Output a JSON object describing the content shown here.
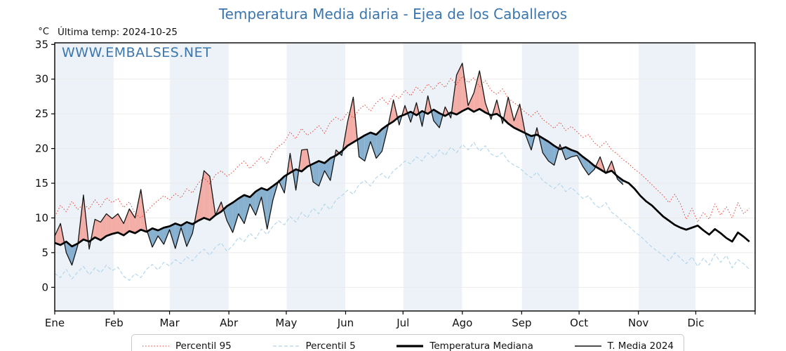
{
  "title": "Temperatura Media diaria - Ejea de los Caballeros",
  "annotations": {
    "unit": "°C",
    "last_temp": "Última temp: 2024-10-25",
    "watermark": "WWW.EMBALSES.NET"
  },
  "colors": {
    "title_blue": "#3a76ad",
    "watermark_blue": "#3a76ad",
    "band": "#edf2f9",
    "hgrid": "#e9e9e9",
    "vgrid": "#ffffff",
    "spine": "#000000",
    "fill_above": "#f3a7a0",
    "fill_below": "#7ea9cb"
  },
  "chart_data": {
    "type": "line",
    "title": "Temperatura Media diaria - Ejea de los Caballeros",
    "xlabel": "",
    "ylabel": "°C",
    "ylim": [
      -3.4,
      35.2
    ],
    "yticks": [
      0,
      5,
      10,
      15,
      20,
      25,
      30,
      35
    ],
    "grid": true,
    "legend_position": "bottom",
    "legend": [
      "Percentil 95",
      "Percentil 5",
      "Temperatura Mediana",
      "T. Media 2024"
    ],
    "months": [
      "Ene",
      "Feb",
      "Mar",
      "Abr",
      "May",
      "Jun",
      "Jul",
      "Ago",
      "Sep",
      "Oct",
      "Nov",
      "Dic"
    ],
    "month_boundaries_day": [
      0,
      31,
      60,
      91,
      121,
      152,
      182,
      213,
      244,
      274,
      305,
      335,
      366
    ],
    "days_grid": {
      "start_day_of_year": 1,
      "step_days": 3
    },
    "series": [
      {
        "name": "Percentil 95",
        "color": "#e53e30",
        "style": "dotted",
        "width": 1.0,
        "values": [
          10.2,
          11.8,
          10.9,
          12.4,
          11.2,
          12.0,
          11.3,
          12.6,
          11.6,
          12.9,
          12.2,
          12.8,
          11.5,
          12.3,
          10.6,
          10.0,
          10.9,
          11.8,
          12.5,
          13.2,
          12.6,
          13.5,
          12.9,
          14.2,
          13.6,
          15.0,
          15.8,
          14.9,
          16.2,
          16.8,
          16.0,
          16.6,
          17.5,
          18.2,
          17.1,
          18.0,
          18.8,
          17.8,
          19.5,
          20.3,
          20.9,
          22.4,
          21.4,
          22.9,
          21.9,
          22.5,
          23.3,
          22.2,
          23.8,
          24.5,
          24.0,
          25.2,
          24.4,
          25.6,
          26.3,
          25.4,
          26.6,
          27.3,
          26.4,
          27.8,
          27.2,
          28.4,
          27.6,
          28.9,
          28.1,
          29.3,
          28.5,
          29.6,
          28.8,
          30.1,
          29.2,
          30.4,
          29.5,
          30.2,
          28.9,
          29.8,
          28.4,
          27.8,
          28.6,
          27.2,
          26.6,
          26.0,
          25.2,
          24.6,
          25.4,
          24.2,
          23.6,
          22.9,
          23.8,
          22.6,
          23.2,
          22.4,
          21.6,
          22.0,
          20.8,
          20.2,
          21.0,
          19.8,
          19.2,
          18.4,
          17.8,
          17.0,
          16.4,
          15.6,
          14.8,
          14.0,
          13.2,
          12.2,
          13.4,
          12.0,
          9.8,
          11.4,
          9.4,
          10.8,
          9.8,
          12.0,
          10.4,
          11.6,
          10.0,
          12.2,
          10.6,
          11.4
        ]
      },
      {
        "name": "Percentil 5",
        "color": "#aed4ea",
        "style": "dashed",
        "width": 1.1,
        "values": [
          2.0,
          1.4,
          2.6,
          1.2,
          2.2,
          3.0,
          1.8,
          2.8,
          2.1,
          3.2,
          2.4,
          2.9,
          1.6,
          1.0,
          2.0,
          1.4,
          2.6,
          3.3,
          2.5,
          3.6,
          3.1,
          4.0,
          3.4,
          4.4,
          3.8,
          4.8,
          5.5,
          4.6,
          5.8,
          6.4,
          5.2,
          6.0,
          7.2,
          6.6,
          7.8,
          7.0,
          8.4,
          7.6,
          8.8,
          9.6,
          9.0,
          10.2,
          9.4,
          10.8,
          10.0,
          11.4,
          10.6,
          12.0,
          11.2,
          12.6,
          13.2,
          14.0,
          13.4,
          14.8,
          15.4,
          14.6,
          15.8,
          16.4,
          15.6,
          16.8,
          17.4,
          18.2,
          17.8,
          18.8,
          18.2,
          19.4,
          18.6,
          19.8,
          19.0,
          20.2,
          19.4,
          20.6,
          19.8,
          20.9,
          19.6,
          20.4,
          19.2,
          18.8,
          19.4,
          18.2,
          17.6,
          17.2,
          16.4,
          15.8,
          16.6,
          15.4,
          14.8,
          14.2,
          15.0,
          13.8,
          14.4,
          13.6,
          12.8,
          13.2,
          12.0,
          11.4,
          12.2,
          10.8,
          10.2,
          9.4,
          8.8,
          8.0,
          7.4,
          6.6,
          5.8,
          5.2,
          4.6,
          3.8,
          5.0,
          4.2,
          3.4,
          4.4,
          3.0,
          4.2,
          3.2,
          4.8,
          3.6,
          4.6,
          2.8,
          4.0,
          3.4,
          2.6
        ]
      },
      {
        "name": "Temperatura Mediana",
        "color": "#000000",
        "style": "solid",
        "width": 2.7,
        "values": [
          6.4,
          6.1,
          6.6,
          5.9,
          6.3,
          6.9,
          6.6,
          7.2,
          6.8,
          7.4,
          7.7,
          7.9,
          7.5,
          8.1,
          7.8,
          8.3,
          8.0,
          8.5,
          8.2,
          8.6,
          8.8,
          9.2,
          8.9,
          9.4,
          9.1,
          9.6,
          10.0,
          9.7,
          10.4,
          10.9,
          11.7,
          12.2,
          12.8,
          13.3,
          13.0,
          13.8,
          14.3,
          14.0,
          14.6,
          15.2,
          16.0,
          16.5,
          17.0,
          16.7,
          17.4,
          17.8,
          18.2,
          17.9,
          18.6,
          19.0,
          19.6,
          20.4,
          20.9,
          21.4,
          21.9,
          22.3,
          22.0,
          22.8,
          23.4,
          23.9,
          24.6,
          24.9,
          25.3,
          24.8,
          25.4,
          25.0,
          25.6,
          25.1,
          24.7,
          25.2,
          24.9,
          25.4,
          25.8,
          25.3,
          25.7,
          25.2,
          24.8,
          25.0,
          24.4,
          23.6,
          23.0,
          22.6,
          22.2,
          21.8,
          22.0,
          21.5,
          21.0,
          20.4,
          19.9,
          20.2,
          19.8,
          19.5,
          18.8,
          18.2,
          17.5,
          17.0,
          16.5,
          16.8,
          16.0,
          15.4,
          15.0,
          14.2,
          13.2,
          12.4,
          11.8,
          11.0,
          10.2,
          9.6,
          9.0,
          8.6,
          8.3,
          8.6,
          8.9,
          8.2,
          7.6,
          8.4,
          7.8,
          7.1,
          6.6,
          7.9,
          7.3,
          6.6
        ]
      },
      {
        "name": "T. Media 2024",
        "color": "#141414",
        "style": "solid",
        "width": 1.3,
        "end_day_of_year": 298,
        "values": [
          7.4,
          9.2,
          5.0,
          3.2,
          6.0,
          13.3,
          5.5,
          9.8,
          9.4,
          10.6,
          9.9,
          10.6,
          9.2,
          11.3,
          10.0,
          14.1,
          8.3,
          5.8,
          7.4,
          6.2,
          8.3,
          5.6,
          8.6,
          5.9,
          7.8,
          12.2,
          16.8,
          16.0,
          10.4,
          12.3,
          9.6,
          7.9,
          10.6,
          9.2,
          12.0,
          10.4,
          13.0,
          8.4,
          12.6,
          15.4,
          13.6,
          19.3,
          14.0,
          19.8,
          19.9,
          15.2,
          14.6,
          16.8,
          15.4,
          19.8,
          19.0,
          23.8,
          27.4,
          18.8,
          18.2,
          21.0,
          18.6,
          19.6,
          23.0,
          27.0,
          23.4,
          26.2,
          23.8,
          26.6,
          23.2,
          27.6,
          24.0,
          23.0,
          26.0,
          24.4,
          30.6,
          32.3,
          26.2,
          28.0,
          31.2,
          26.6,
          24.2,
          27.0,
          23.6,
          27.4,
          24.0,
          26.4,
          22.0,
          19.8,
          23.0,
          19.4,
          18.2,
          17.6,
          20.6,
          18.4,
          18.8,
          19.0,
          17.4,
          16.2,
          17.0,
          18.8,
          16.4,
          18.2,
          15.6,
          14.8
        ]
      }
    ],
    "fill_between": {
      "upper_series": "T. Media 2024",
      "reference_series": "Temperatura Mediana",
      "above_color": "#f3a7a0",
      "below_color": "#7ea9cb"
    }
  }
}
